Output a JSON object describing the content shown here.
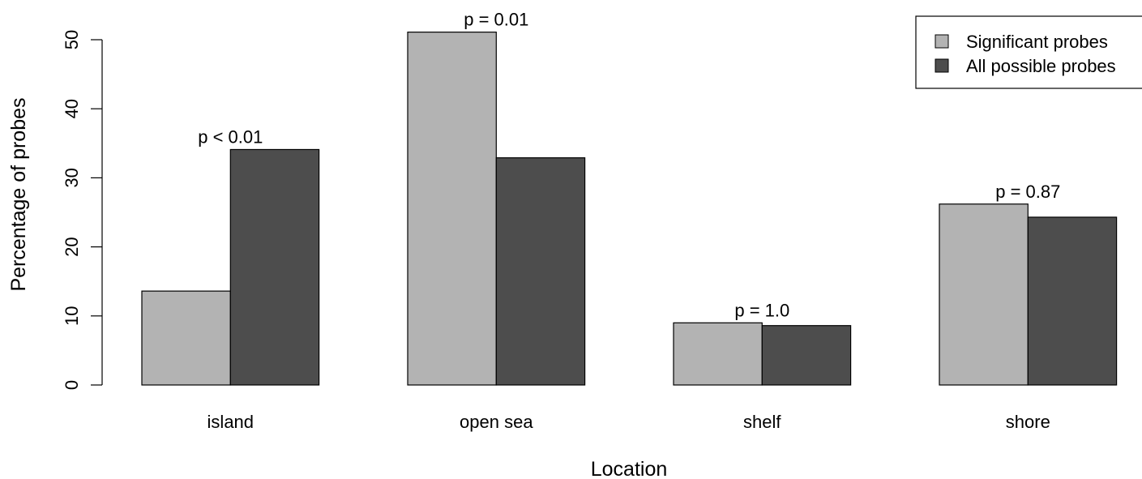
{
  "chart_data": {
    "type": "bar",
    "xlabel": "Location",
    "ylabel": "Percentage of probes",
    "ylim": [
      0,
      52
    ],
    "yticks": [
      0,
      10,
      20,
      30,
      40,
      50
    ],
    "categories": [
      "island",
      "open sea",
      "shelf",
      "shore"
    ],
    "series": [
      {
        "name": "Significant probes",
        "color": "#b3b3b3",
        "values": [
          13.6,
          51.1,
          9.0,
          26.2
        ]
      },
      {
        "name": "All possible probes",
        "color": "#4d4d4d",
        "values": [
          34.1,
          32.9,
          8.6,
          24.3
        ]
      }
    ],
    "annotations": [
      "p < 0.01",
      "p = 0.01",
      "p = 1.0",
      "p = 0.87"
    ],
    "legend": {
      "position": "top-right"
    },
    "grid": false
  }
}
